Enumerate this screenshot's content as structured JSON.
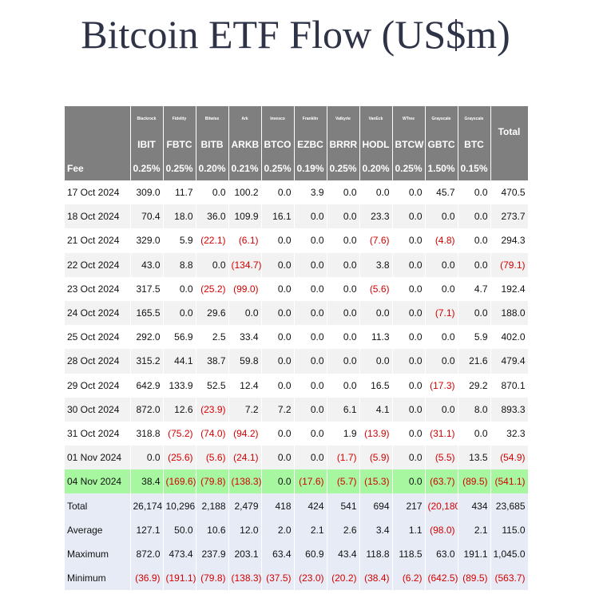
{
  "title": "Bitcoin ETF Flow (US$m)",
  "columns": [
    {
      "issuer": "Blackrock",
      "ticker": "IBIT",
      "fee": "0.25%"
    },
    {
      "issuer": "Fidelity",
      "ticker": "FBTC",
      "fee": "0.25%"
    },
    {
      "issuer": "Bitwise",
      "ticker": "BITB",
      "fee": "0.20%"
    },
    {
      "issuer": "Ark",
      "ticker": "ARKB",
      "fee": "0.21%"
    },
    {
      "issuer": "Invesco",
      "ticker": "BTCO",
      "fee": "0.25%"
    },
    {
      "issuer": "Franklin",
      "ticker": "EZBC",
      "fee": "0.19%"
    },
    {
      "issuer": "Valkyrie",
      "ticker": "BRRR",
      "fee": "0.25%"
    },
    {
      "issuer": "VanEck",
      "ticker": "HODL",
      "fee": "0.20%"
    },
    {
      "issuer": "WTree",
      "ticker": "BTCW",
      "fee": "0.25%"
    },
    {
      "issuer": "Grayscale",
      "ticker": "GBTC",
      "fee": "1.50%"
    },
    {
      "issuer": "Grayscale",
      "ticker": "BTC",
      "fee": "0.15%"
    }
  ],
  "total_header": "Total",
  "fee_label": "Fee",
  "rows": [
    {
      "label": "17 Oct 2024",
      "values": [
        "309.0",
        "11.7",
        "0.0",
        "100.2",
        "0.0",
        "3.9",
        "0.0",
        "0.0",
        "0.0",
        "45.7",
        "0.0"
      ],
      "total": "470.5"
    },
    {
      "label": "18 Oct 2024",
      "values": [
        "70.4",
        "18.0",
        "36.0",
        "109.9",
        "16.1",
        "0.0",
        "0.0",
        "23.3",
        "0.0",
        "0.0",
        "0.0"
      ],
      "total": "273.7"
    },
    {
      "label": "21 Oct 2024",
      "values": [
        "329.0",
        "5.9",
        "(22.1)",
        "(6.1)",
        "0.0",
        "0.0",
        "0.0",
        "(7.6)",
        "0.0",
        "(4.8)",
        "0.0"
      ],
      "total": "294.3"
    },
    {
      "label": "22 Oct 2024",
      "values": [
        "43.0",
        "8.8",
        "0.0",
        "(134.7)",
        "0.0",
        "0.0",
        "0.0",
        "3.8",
        "0.0",
        "0.0",
        "0.0"
      ],
      "total": "(79.1)"
    },
    {
      "label": "23 Oct 2024",
      "values": [
        "317.5",
        "0.0",
        "(25.2)",
        "(99.0)",
        "0.0",
        "0.0",
        "0.0",
        "(5.6)",
        "0.0",
        "0.0",
        "4.7"
      ],
      "total": "192.4"
    },
    {
      "label": "24 Oct 2024",
      "values": [
        "165.5",
        "0.0",
        "29.6",
        "0.0",
        "0.0",
        "0.0",
        "0.0",
        "0.0",
        "0.0",
        "(7.1)",
        "0.0"
      ],
      "total": "188.0"
    },
    {
      "label": "25 Oct 2024",
      "values": [
        "292.0",
        "56.9",
        "2.5",
        "33.4",
        "0.0",
        "0.0",
        "0.0",
        "11.3",
        "0.0",
        "0.0",
        "5.9"
      ],
      "total": "402.0"
    },
    {
      "label": "28 Oct 2024",
      "values": [
        "315.2",
        "44.1",
        "38.7",
        "59.8",
        "0.0",
        "0.0",
        "0.0",
        "0.0",
        "0.0",
        "0.0",
        "21.6"
      ],
      "total": "479.4"
    },
    {
      "label": "29 Oct 2024",
      "values": [
        "642.9",
        "133.9",
        "52.5",
        "12.4",
        "0.0",
        "0.0",
        "0.0",
        "16.5",
        "0.0",
        "(17.3)",
        "29.2"
      ],
      "total": "870.1"
    },
    {
      "label": "30 Oct 2024",
      "values": [
        "872.0",
        "12.6",
        "(23.9)",
        "7.2",
        "7.2",
        "0.0",
        "6.1",
        "4.1",
        "0.0",
        "0.0",
        "8.0"
      ],
      "total": "893.3"
    },
    {
      "label": "31 Oct 2024",
      "values": [
        "318.8",
        "(75.2)",
        "(74.0)",
        "(94.2)",
        "0.0",
        "0.0",
        "1.9",
        "(13.9)",
        "0.0",
        "(31.1)",
        "0.0"
      ],
      "total": "32.3"
    },
    {
      "label": "01 Nov 2024",
      "values": [
        "0.0",
        "(25.6)",
        "(5.6)",
        "(24.1)",
        "0.0",
        "0.0",
        "(1.7)",
        "(5.9)",
        "0.0",
        "(5.5)",
        "13.5"
      ],
      "total": "(54.9)"
    },
    {
      "label": "04 Nov 2024",
      "values": [
        "38.4",
        "(169.6)",
        "(79.8)",
        "(138.3)",
        "0.0",
        "(17.6)",
        "(5.7)",
        "(15.3)",
        "0.0",
        "(63.7)",
        "(89.5)"
      ],
      "total": "(541.1)",
      "highlight": true
    }
  ],
  "stats": [
    {
      "label": "Total",
      "values": [
        "26,174",
        "10,296",
        "2,188",
        "2,479",
        "418",
        "424",
        "541",
        "694",
        "217",
        "(20,180)",
        "434"
      ],
      "total": "23,685"
    },
    {
      "label": "Average",
      "values": [
        "127.1",
        "50.0",
        "10.6",
        "12.0",
        "2.0",
        "2.1",
        "2.6",
        "3.4",
        "1.1",
        "(98.0)",
        "2.1"
      ],
      "total": "115.0"
    },
    {
      "label": "Maximum",
      "values": [
        "872.0",
        "473.4",
        "237.9",
        "203.1",
        "63.4",
        "60.9",
        "43.4",
        "118.8",
        "118.5",
        "63.0",
        "191.1"
      ],
      "total": "1,045.0"
    },
    {
      "label": "Minimum",
      "values": [
        "(36.9)",
        "(191.1)",
        "(79.8)",
        "(138.3)",
        "(37.5)",
        "(23.0)",
        "(20.2)",
        "(38.4)",
        "(6.2)",
        "(642.5)",
        "(89.5)"
      ],
      "total": "(563.7)"
    }
  ],
  "colors": {
    "header_bg": "#7f7f7f",
    "negative": "#d40000",
    "highlight_row": "#a6f7a0",
    "stats_bg": "#e6ebf5",
    "title": "#2e3347"
  }
}
